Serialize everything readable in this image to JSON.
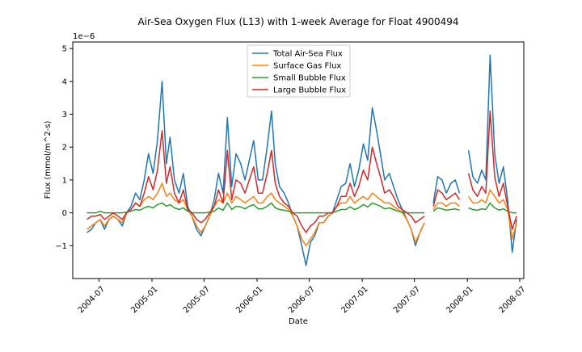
{
  "chart_data": {
    "type": "line",
    "title": "Air-Sea Oxygen Flux (L13) with 1-week Average for Float 4900494",
    "xlabel": "Date",
    "ylabel": "Flux (mmol/m^2-s)",
    "y_offset_label": "1e−6",
    "y_scale_factor": 1e-06,
    "xlim": [
      "2004-04-01",
      "2008-07-15"
    ],
    "ylim": [
      -2.0,
      5.2
    ],
    "grid": false,
    "legend_position": "top-center",
    "x_ticks": [
      {
        "date": "2004-07-01",
        "label": "2004-07"
      },
      {
        "date": "2005-01-01",
        "label": "2005-01"
      },
      {
        "date": "2005-07-01",
        "label": "2005-07"
      },
      {
        "date": "2006-01-01",
        "label": "2006-01"
      },
      {
        "date": "2006-07-01",
        "label": "2006-07"
      },
      {
        "date": "2007-01-01",
        "label": "2007-01"
      },
      {
        "date": "2007-07-01",
        "label": "2007-07"
      },
      {
        "date": "2008-01-01",
        "label": "2008-01"
      },
      {
        "date": "2008-07-01",
        "label": "2008-07"
      }
    ],
    "y_ticks": [
      -1,
      0,
      1,
      2,
      3,
      4,
      5
    ],
    "x": [
      "2004-05-20",
      "2004-06-05",
      "2004-06-20",
      "2004-07-05",
      "2004-07-20",
      "2004-08-05",
      "2004-08-20",
      "2004-09-05",
      "2004-09-20",
      "2004-10-05",
      "2004-10-20",
      "2004-11-05",
      "2004-11-20",
      "2004-12-05",
      "2004-12-20",
      "2005-01-05",
      "2005-01-20",
      "2005-02-05",
      "2005-02-20",
      "2005-03-05",
      "2005-03-20",
      "2005-04-05",
      "2005-04-20",
      "2005-05-05",
      "2005-05-20",
      "2005-06-05",
      "2005-06-20",
      "2005-07-05",
      "2005-07-20",
      "2005-08-05",
      "2005-08-20",
      "2005-09-05",
      "2005-09-20",
      "2005-10-05",
      "2005-10-20",
      "2005-11-05",
      "2005-11-20",
      "2005-12-05",
      "2005-12-20",
      "2006-01-05",
      "2006-01-20",
      "2006-02-05",
      "2006-02-20",
      "2006-03-05",
      "2006-03-20",
      "2006-04-05",
      "2006-04-20",
      "2006-05-05",
      "2006-05-20",
      "2006-06-05",
      "2006-06-20",
      "2006-07-05",
      "2006-07-20",
      "2006-08-05",
      "2006-08-20",
      "2006-09-05",
      "2006-09-20",
      "2006-10-05",
      "2006-10-20",
      "2006-11-05",
      "2006-11-20",
      "2006-12-05",
      "2006-12-20",
      "2007-01-05",
      "2007-01-20",
      "2007-02-05",
      "2007-02-20",
      "2007-03-05",
      "2007-03-20",
      "2007-04-05",
      "2007-04-20",
      "2007-05-05",
      "2007-05-20",
      "2007-06-05",
      "2007-06-20",
      "2007-07-05",
      "2007-07-20",
      "2007-08-05",
      "2007-08-20",
      "2007-09-05",
      "2007-09-20",
      "2007-10-05",
      "2007-10-20",
      "2007-11-05",
      "2007-11-20",
      "2007-12-05",
      "2007-12-20",
      "2008-01-05",
      "2008-01-20",
      "2008-02-05",
      "2008-02-20",
      "2008-03-05",
      "2008-03-20",
      "2008-04-05",
      "2008-04-20",
      "2008-05-05",
      "2008-05-20",
      "2008-06-05",
      "2008-06-20"
    ],
    "series": [
      {
        "name": "Total Air-Sea Flux",
        "color": "#1f77b4",
        "values": [
          -0.6,
          -0.5,
          -0.3,
          -0.2,
          -0.5,
          -0.2,
          -0.1,
          -0.2,
          -0.4,
          0.0,
          0.2,
          0.6,
          0.4,
          1.0,
          1.8,
          1.2,
          2.2,
          4.0,
          1.5,
          2.3,
          1.0,
          0.6,
          1.2,
          0.2,
          -0.1,
          -0.5,
          -0.7,
          -0.4,
          -0.1,
          0.4,
          1.2,
          0.6,
          2.9,
          0.8,
          1.8,
          1.5,
          1.0,
          1.6,
          2.2,
          1.0,
          1.0,
          2.0,
          3.1,
          1.5,
          0.8,
          0.6,
          0.3,
          -0.1,
          -0.4,
          -1.0,
          -1.6,
          -0.9,
          -0.7,
          -0.3,
          -0.3,
          -0.1,
          0.0,
          0.4,
          0.8,
          0.9,
          1.5,
          0.8,
          1.3,
          2.1,
          1.6,
          3.2,
          2.5,
          1.8,
          1.0,
          1.2,
          0.8,
          0.4,
          0.1,
          -0.2,
          -0.5,
          -1.0,
          -0.6,
          -0.3,
          null,
          0.3,
          1.1,
          1.0,
          0.6,
          0.9,
          1.0,
          0.6,
          null,
          1.9,
          1.1,
          0.9,
          1.3,
          1.0,
          4.8,
          1.8,
          0.9,
          1.4,
          0.4,
          -1.2,
          -0.2
        ]
      },
      {
        "name": "Surface Gas Flux",
        "color": "#ff7f0e",
        "values": [
          -0.5,
          -0.4,
          -0.3,
          -0.2,
          -0.4,
          -0.2,
          -0.1,
          -0.2,
          -0.3,
          0.0,
          0.1,
          0.3,
          0.2,
          0.4,
          0.5,
          0.4,
          0.6,
          0.9,
          0.5,
          0.6,
          0.4,
          0.3,
          0.4,
          0.1,
          -0.1,
          -0.4,
          -0.6,
          -0.4,
          -0.1,
          0.2,
          0.4,
          0.3,
          0.6,
          0.3,
          0.5,
          0.4,
          0.3,
          0.4,
          0.5,
          0.3,
          0.3,
          0.5,
          0.6,
          0.4,
          0.3,
          0.2,
          0.1,
          -0.1,
          -0.4,
          -0.8,
          -1.0,
          -0.8,
          -0.6,
          -0.3,
          -0.3,
          -0.1,
          0.0,
          0.2,
          0.3,
          0.3,
          0.5,
          0.3,
          0.4,
          0.5,
          0.4,
          0.6,
          0.5,
          0.4,
          0.3,
          0.3,
          0.2,
          0.1,
          0.0,
          -0.2,
          -0.5,
          -0.9,
          -0.6,
          -0.3,
          null,
          0.1,
          0.3,
          0.3,
          0.2,
          0.3,
          0.3,
          0.2,
          null,
          0.5,
          0.3,
          0.3,
          0.4,
          0.3,
          0.7,
          0.5,
          0.3,
          0.4,
          0.1,
          -0.8,
          -0.3
        ]
      },
      {
        "name": "Small Bubble Flux",
        "color": "#2ca02c",
        "values": [
          0.0,
          0.0,
          0.0,
          0.05,
          0.0,
          0.0,
          0.0,
          0.0,
          0.0,
          0.02,
          0.05,
          0.1,
          0.08,
          0.15,
          0.2,
          0.15,
          0.25,
          0.3,
          0.2,
          0.25,
          0.15,
          0.1,
          0.15,
          0.05,
          0.0,
          0.0,
          0.0,
          0.0,
          0.02,
          0.05,
          0.15,
          0.08,
          0.3,
          0.1,
          0.2,
          0.18,
          0.12,
          0.2,
          0.25,
          0.12,
          0.12,
          0.2,
          0.3,
          0.15,
          0.1,
          0.08,
          0.05,
          0.0,
          0.0,
          0.0,
          0.0,
          0.0,
          0.0,
          0.0,
          0.0,
          0.0,
          0.0,
          0.05,
          0.1,
          0.1,
          0.18,
          0.1,
          0.15,
          0.25,
          0.18,
          0.3,
          0.25,
          0.2,
          0.12,
          0.15,
          0.1,
          0.05,
          0.02,
          0.0,
          0.0,
          0.0,
          0.0,
          0.0,
          null,
          0.05,
          0.15,
          0.12,
          0.08,
          0.1,
          0.12,
          0.08,
          null,
          0.15,
          0.1,
          0.08,
          0.12,
          0.1,
          0.3,
          0.15,
          0.08,
          0.12,
          0.05,
          0.0,
          0.0
        ]
      },
      {
        "name": "Large Bubble Flux",
        "color": "#d62728",
        "values": [
          -0.2,
          -0.1,
          -0.1,
          -0.05,
          -0.2,
          -0.1,
          0.0,
          -0.1,
          -0.2,
          0.0,
          0.1,
          0.3,
          0.2,
          0.6,
          1.1,
          0.7,
          1.3,
          2.5,
          0.9,
          1.4,
          0.6,
          0.3,
          0.7,
          0.1,
          0.0,
          -0.2,
          -0.3,
          -0.2,
          0.0,
          0.2,
          0.7,
          0.3,
          1.9,
          0.4,
          1.0,
          0.9,
          0.6,
          1.0,
          1.4,
          0.6,
          0.6,
          1.2,
          1.9,
          0.9,
          0.5,
          0.3,
          0.2,
          0.0,
          -0.1,
          -0.4,
          -0.6,
          -0.4,
          -0.3,
          -0.1,
          -0.1,
          0.0,
          0.0,
          0.2,
          0.5,
          0.5,
          0.9,
          0.5,
          0.8,
          1.3,
          1.0,
          2.0,
          1.5,
          1.1,
          0.6,
          0.7,
          0.5,
          0.2,
          0.1,
          0.0,
          -0.1,
          -0.3,
          -0.2,
          -0.1,
          null,
          0.2,
          0.7,
          0.6,
          0.4,
          0.5,
          0.6,
          0.4,
          null,
          1.2,
          0.7,
          0.5,
          0.8,
          0.6,
          3.1,
          1.1,
          0.5,
          0.9,
          0.2,
          -0.5,
          -0.1
        ]
      }
    ]
  }
}
